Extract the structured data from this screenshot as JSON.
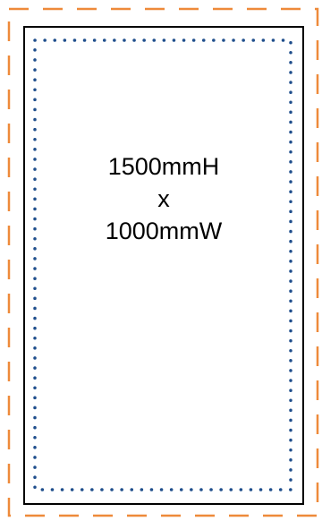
{
  "dimensions": {
    "height_label": "1500mmH",
    "separator": "x",
    "width_label": "1000mmW"
  },
  "colors": {
    "bleed_line": "#ee8a3a",
    "trim_line": "#000000",
    "safe_line": "#1f4e8c",
    "background": "#ffffff"
  }
}
